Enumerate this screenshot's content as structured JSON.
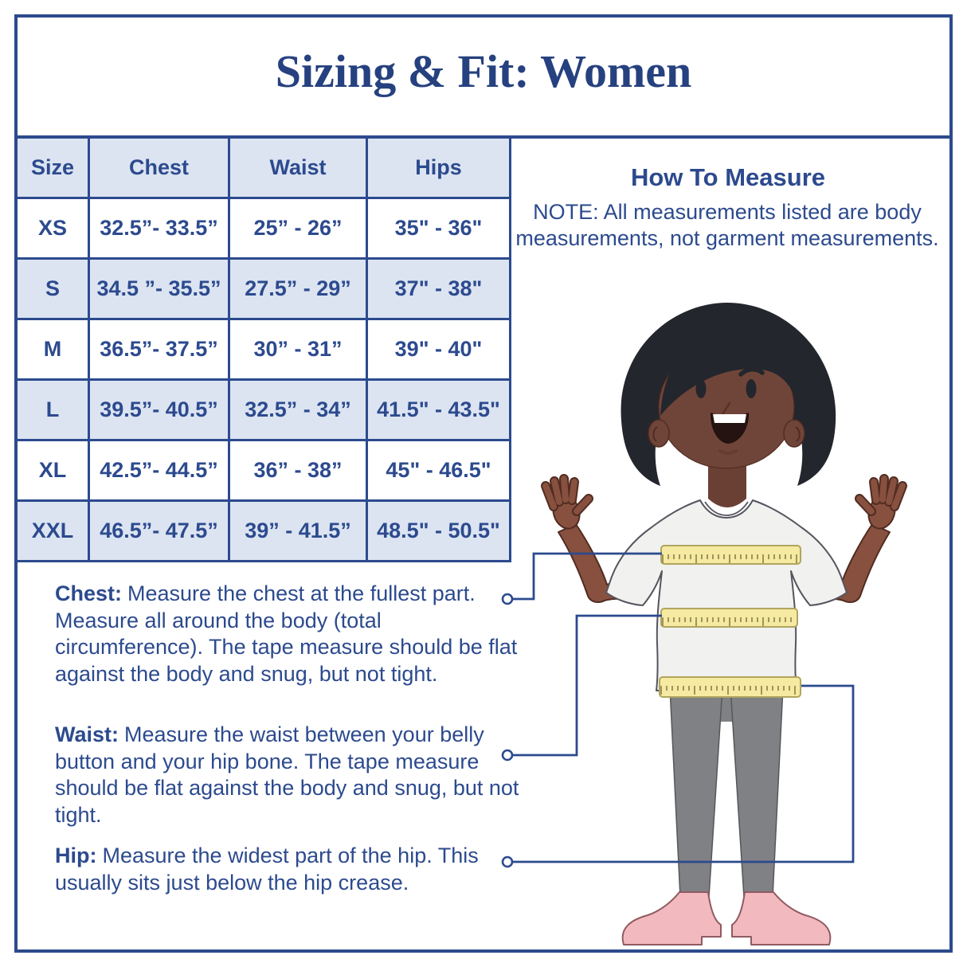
{
  "title": "Sizing & Fit: Women",
  "table": {
    "headers": [
      "Size",
      "Chest",
      "Waist",
      "Hips"
    ],
    "rows": [
      {
        "size": "XS",
        "chest": "32.5”- 33.5”",
        "waist": "25” - 26”",
        "hips": "35\" - 36\""
      },
      {
        "size": "S",
        "chest": "34.5 ”- 35.5”",
        "waist": "27.5” - 29”",
        "hips": "37\" - 38\""
      },
      {
        "size": "M",
        "chest": "36.5”- 37.5”",
        "waist": "30” - 31”",
        "hips": "39\" - 40\""
      },
      {
        "size": "L",
        "chest": "39.5”- 40.5”",
        "waist": "32.5” - 34”",
        "hips": "41.5\" - 43.5\""
      },
      {
        "size": "XL",
        "chest": "42.5”- 44.5”",
        "waist": "36” - 38”",
        "hips": "45\" - 46.5\""
      },
      {
        "size": "XXL",
        "chest": "46.5”- 47.5”",
        "waist": "39” - 41.5”",
        "hips": "48.5\" - 50.5\""
      }
    ]
  },
  "howto": {
    "heading": "How To Measure",
    "note_line1": "NOTE: All measurements listed are body",
    "note_line2": "measurements, not garment measurements."
  },
  "paragraphs": [
    {
      "label": "Chest:",
      "text": "Measure the chest at the fullest part. Measure all around the body (total circumference). The tape measure should be flat against the body and snug, but not tight."
    },
    {
      "label": "Waist:",
      "text": "Measure the waist between your belly button and your hip bone. The tape measure should be flat against the body and snug, but not tight."
    },
    {
      "label": "Hip:",
      "text": "Measure the widest part of the hip. This usually sits just below the hip crease."
    }
  ],
  "colors": {
    "navy": "#2c4a8e",
    "navy-dark": "#26417f",
    "frame": "#2d4a8c",
    "row-alt": "#dce4f2",
    "tape": "#f6e9a1",
    "tape-border": "#b0a55e",
    "tape-tick": "#8a7f4a",
    "skin": "#704539",
    "skin-arm": "#87503f",
    "hair": "#23262c",
    "shirt": "#f1f1ef",
    "leggings": "#7f8184",
    "shoes": "#f2b9bf"
  }
}
